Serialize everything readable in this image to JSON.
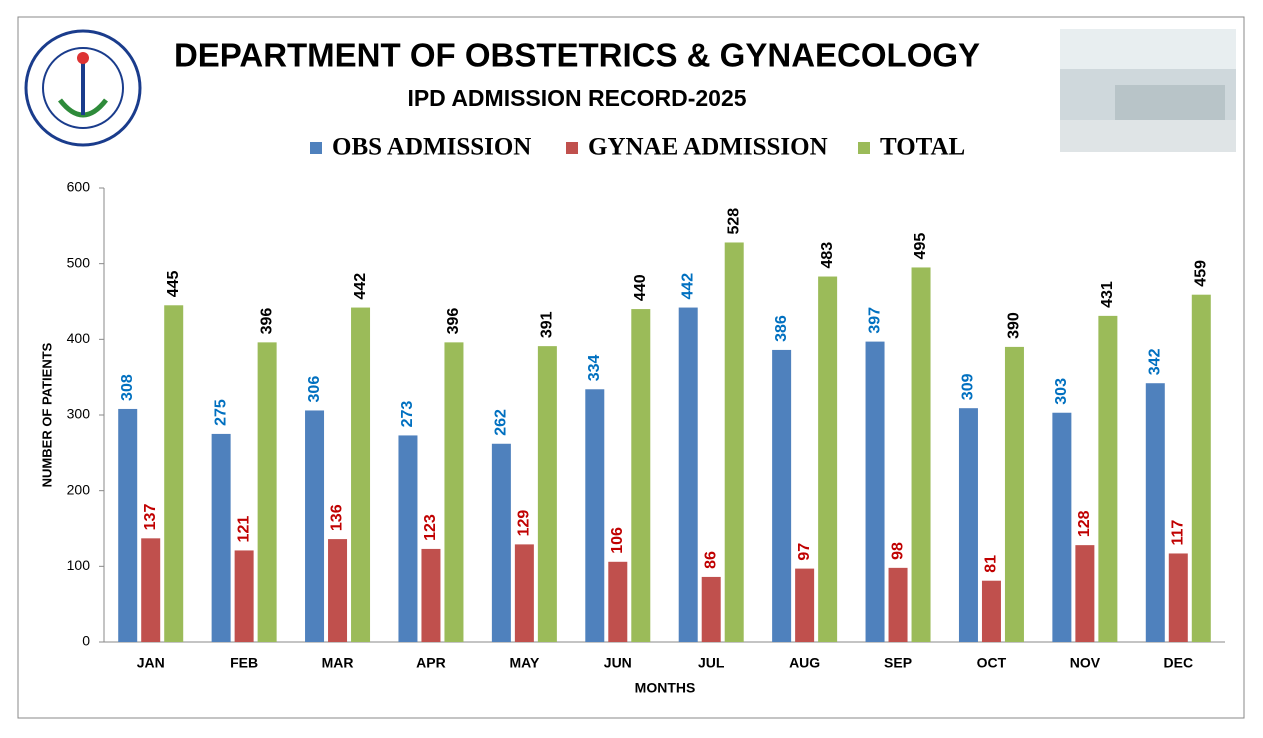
{
  "chart_data": {
    "type": "bar",
    "title": "DEPARTMENT OF OBSTETRICS & GYNAECOLOGY",
    "subtitle": "IPD ADMISSION RECORD-2025",
    "x_label": "MONTHS",
    "y_label": "NUMBER OF PATIENTS",
    "categories": [
      "JAN",
      "FEB",
      "MAR",
      "APR",
      "MAY",
      "JUN",
      "JUL",
      "AUG",
      "SEP",
      "OCT",
      "NOV",
      "DEC"
    ],
    "series": [
      {
        "name": "OBS ADMISSION",
        "color": "#4f81bd",
        "label_color": "#0070c0",
        "values": [
          308,
          275,
          306,
          273,
          262,
          334,
          442,
          386,
          397,
          309,
          303,
          342
        ]
      },
      {
        "name": "GYNAE ADMISSION",
        "color": "#c0504d",
        "label_color": "#c00000",
        "values": [
          137,
          121,
          136,
          123,
          129,
          106,
          86,
          97,
          98,
          81,
          128,
          117
        ]
      },
      {
        "name": "TOTAL",
        "color": "#9bbb59",
        "label_color": "#000000",
        "values": [
          445,
          396,
          442,
          396,
          391,
          440,
          528,
          483,
          495,
          390,
          431,
          459
        ]
      }
    ],
    "ylim": [
      0,
      600
    ],
    "yticks": [
      0,
      100,
      200,
      300,
      400,
      500,
      600
    ],
    "grid": false,
    "legend": "top"
  }
}
